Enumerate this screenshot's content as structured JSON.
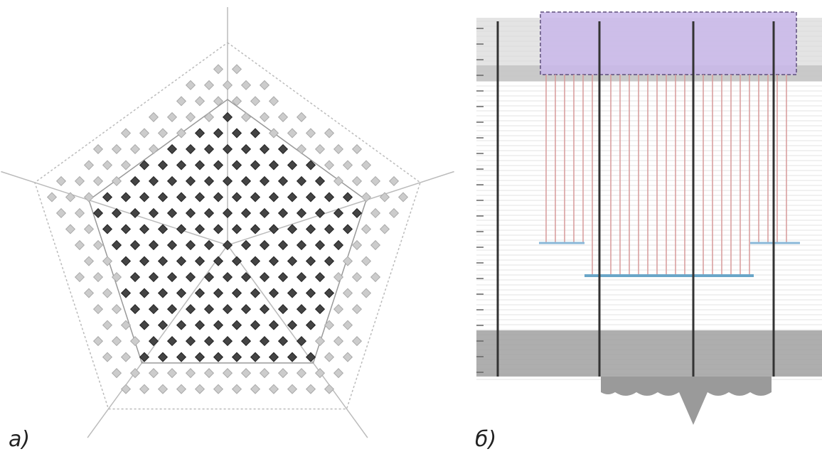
{
  "panels": [
    {
      "label": "а)"
    },
    {
      "label": "б)"
    }
  ]
}
